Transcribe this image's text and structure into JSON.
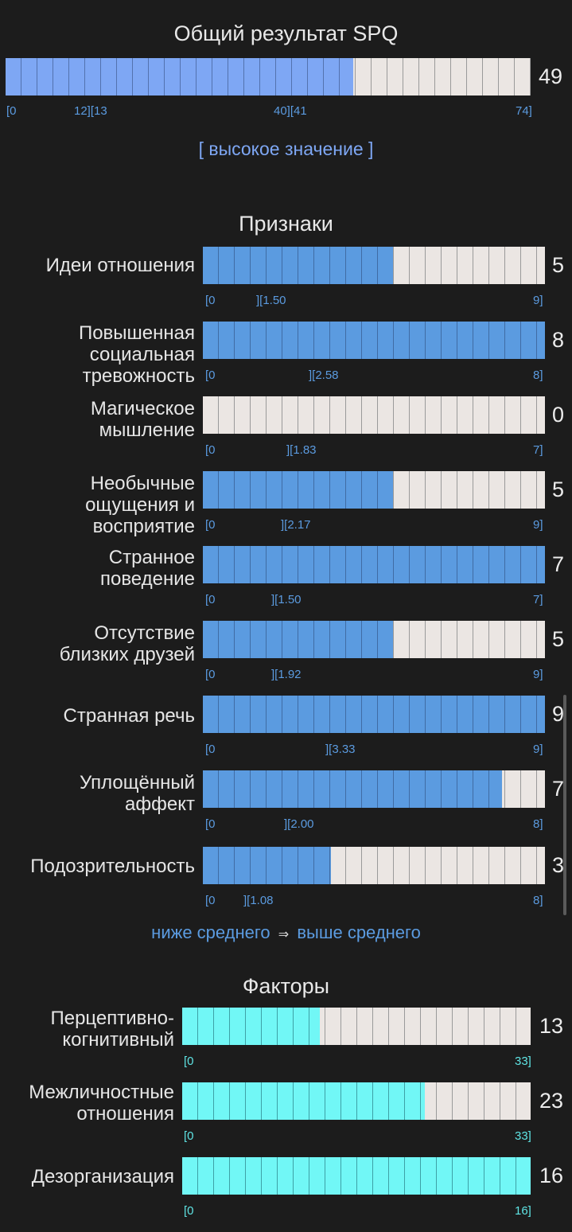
{
  "total": {
    "title": "Общий результат SPQ",
    "value": "49",
    "fraction": 0.662,
    "ticks": [
      "[0",
      "12][13",
      "40][41",
      "74]"
    ],
    "verdict": "[ высокое значение ]"
  },
  "signs": {
    "title": "Признаки",
    "items": [
      {
        "label": [
          "Идеи отношения"
        ],
        "value": "5",
        "fraction": 0.556,
        "ticks": [
          "[0",
          "][1.50",
          "9]"
        ]
      },
      {
        "label": [
          "Повышенная",
          "социальная",
          "тревожность"
        ],
        "value": "8",
        "fraction": 1.0,
        "ticks": [
          "[0",
          "][2.58",
          "8]"
        ]
      },
      {
        "label": [
          "Магическое",
          "мышление"
        ],
        "value": "0",
        "fraction": 0.0,
        "ticks": [
          "[0",
          "][1.83",
          "7]"
        ]
      },
      {
        "label": [
          "Необычные",
          "ощущения и",
          "восприятие"
        ],
        "value": "5",
        "fraction": 0.556,
        "ticks": [
          "[0",
          "][2.17",
          "9]"
        ]
      },
      {
        "label": [
          "Странное",
          "поведение"
        ],
        "value": "7",
        "fraction": 1.0,
        "ticks": [
          "[0",
          "][1.50",
          "7]"
        ]
      },
      {
        "label": [
          "Отсутствие",
          "близких друзей"
        ],
        "value": "5",
        "fraction": 0.556,
        "ticks": [
          "[0",
          "][1.92",
          "9]"
        ]
      },
      {
        "label": [
          "Странная речь"
        ],
        "value": "9",
        "fraction": 1.0,
        "ticks": [
          "[0",
          "][3.33",
          "9]"
        ]
      },
      {
        "label": [
          "Уплощённый",
          "аффект"
        ],
        "value": "7",
        "fraction": 0.875,
        "ticks": [
          "[0",
          "][2.00",
          "8]"
        ]
      },
      {
        "label": [
          "Подозрительность"
        ],
        "value": "3",
        "fraction": 0.375,
        "ticks": [
          "[0",
          "][1.08",
          "8]"
        ]
      }
    ],
    "legend": {
      "low": "ниже среднего",
      "arrow": "⇒",
      "high": "выше среднего"
    }
  },
  "factors": {
    "title": "Факторы",
    "items": [
      {
        "label": [
          "Перцептивно-",
          "когнитивный"
        ],
        "value": "13",
        "fraction": 0.394,
        "ticks": [
          "[0",
          "33]"
        ]
      },
      {
        "label": [
          "Межличностные",
          "отношения"
        ],
        "value": "23",
        "fraction": 0.697,
        "ticks": [
          "[0",
          "33]"
        ]
      },
      {
        "label": [
          "Дезорганизация"
        ],
        "value": "16",
        "fraction": 1.0,
        "ticks": [
          "[0",
          "16]"
        ]
      }
    ]
  },
  "colors": {
    "total_fill": "#7ea7f4",
    "sign_fill": "#5b9be0",
    "factor_fill": "#71f7f6",
    "bar_empty": "#ebe6e3"
  }
}
